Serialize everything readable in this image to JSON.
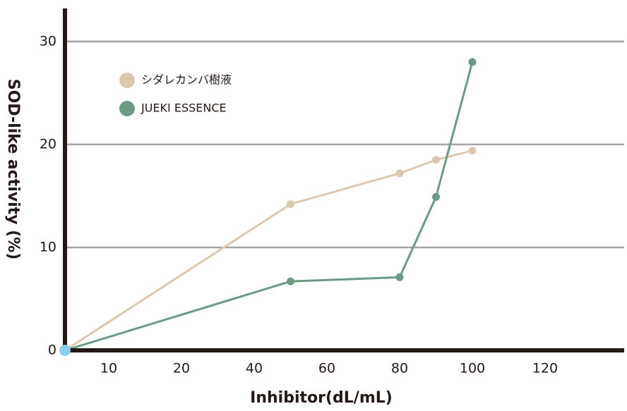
{
  "chart_data": {
    "type": "line",
    "xlabel": "Inhibitor(dL/mL)",
    "ylabel": "SOD-like activity (%)",
    "x": [
      0,
      50,
      80,
      90,
      100
    ],
    "series": [
      {
        "name": "シダレカンバ樹液",
        "color": "#dcc8b0",
        "values": [
          0,
          14.2,
          17.2,
          18.5,
          19.4
        ]
      },
      {
        "name": "JUEKI ESSENCE",
        "color": "#6d9a85",
        "values": [
          0,
          6.7,
          7.1,
          14.9,
          28
        ]
      }
    ],
    "xlim": [
      0,
      140
    ],
    "xticks": [
      10,
      20,
      40,
      60,
      80,
      100,
      120
    ],
    "ylim": [
      0,
      33
    ],
    "yticks": [
      0,
      10,
      20,
      30
    ],
    "grid": true,
    "legend": "upper left"
  }
}
